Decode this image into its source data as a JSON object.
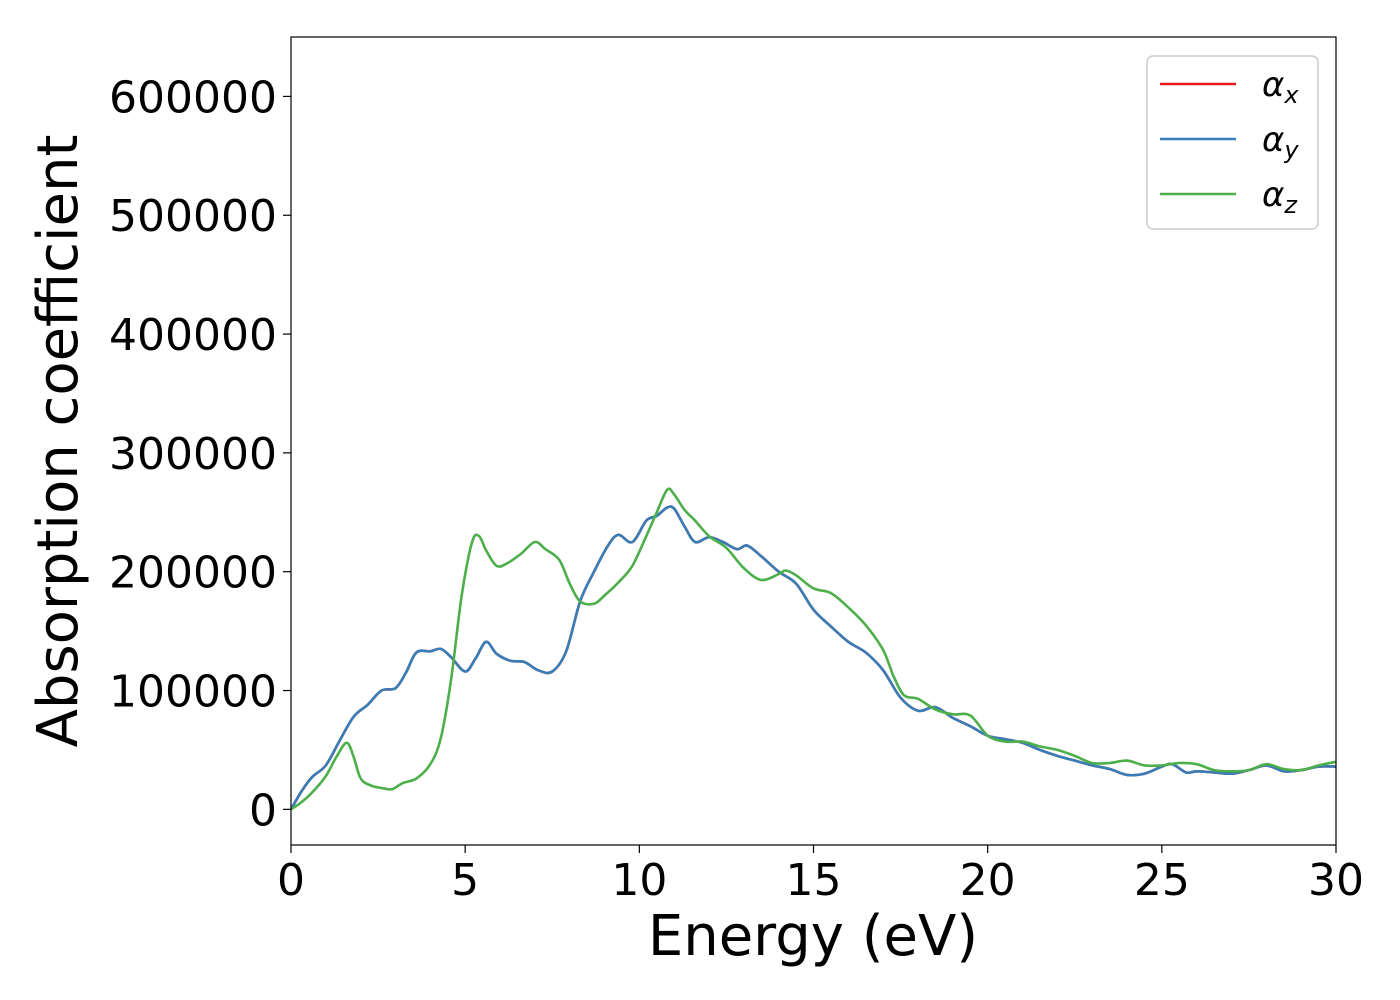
{
  "chart_data": {
    "type": "line",
    "xlabel": "Energy (eV)",
    "ylabel": "Absorption coefficient",
    "xlim": [
      0,
      30
    ],
    "ylim": [
      -30000,
      650000
    ],
    "xticks": [
      0,
      5,
      10,
      15,
      20,
      25,
      30
    ],
    "yticks": [
      0,
      100000,
      200000,
      300000,
      400000,
      500000,
      600000
    ],
    "grid": false,
    "legend_position": "top-right",
    "series": [
      {
        "name": "α",
        "subscript": "x",
        "color": "#e41a1c",
        "x": [
          0,
          0.3,
          0.6,
          1.0,
          1.4,
          1.8,
          2.2,
          2.6,
          3.0,
          3.3,
          3.6,
          4.0,
          4.3,
          4.6,
          5.0,
          5.3,
          5.6,
          5.9,
          6.3,
          6.7,
          7.1,
          7.5,
          7.9,
          8.3,
          8.7,
          9.1,
          9.4,
          9.8,
          10.2,
          10.5,
          10.8,
          11.0,
          11.3,
          11.6,
          12.0,
          12.4,
          12.8,
          13.1,
          13.5,
          14.0,
          14.5,
          15.0,
          15.5,
          16.0,
          16.5,
          17.0,
          17.5,
          18.0,
          18.5,
          19.0,
          19.5,
          20.0,
          20.5,
          21.0,
          21.5,
          22.0,
          22.5,
          23.0,
          23.5,
          24.0,
          24.5,
          25.0,
          25.3,
          25.7,
          26.0,
          26.5,
          27.0,
          27.5,
          28.0,
          28.5,
          29.0,
          29.5,
          30.0
        ],
        "y": [
          0,
          15000,
          27000,
          37000,
          58000,
          78000,
          88000,
          100000,
          102000,
          115000,
          132000,
          133000,
          135000,
          128000,
          116000,
          127000,
          141000,
          131000,
          125000,
          124000,
          117000,
          116000,
          133000,
          175000,
          200000,
          222000,
          231000,
          225000,
          243000,
          247000,
          254000,
          253000,
          238000,
          225000,
          229000,
          225000,
          219000,
          222000,
          213000,
          200000,
          190000,
          168000,
          154000,
          141000,
          132000,
          117000,
          94000,
          83000,
          86000,
          77000,
          70000,
          62000,
          59000,
          56000,
          50000,
          45000,
          41000,
          37000,
          34000,
          29000,
          30000,
          36000,
          38000,
          31000,
          32000,
          31000,
          30000,
          33000,
          37000,
          32000,
          33000,
          36000,
          36000
        ]
      },
      {
        "name": "α",
        "subscript": "y",
        "color": "#377eb8",
        "x": [
          0,
          0.3,
          0.6,
          1.0,
          1.4,
          1.8,
          2.2,
          2.6,
          3.0,
          3.3,
          3.6,
          4.0,
          4.3,
          4.6,
          5.0,
          5.3,
          5.6,
          5.9,
          6.3,
          6.7,
          7.1,
          7.5,
          7.9,
          8.3,
          8.7,
          9.1,
          9.4,
          9.8,
          10.2,
          10.5,
          10.8,
          11.0,
          11.3,
          11.6,
          12.0,
          12.4,
          12.8,
          13.1,
          13.5,
          14.0,
          14.5,
          15.0,
          15.5,
          16.0,
          16.5,
          17.0,
          17.5,
          18.0,
          18.5,
          19.0,
          19.5,
          20.0,
          20.5,
          21.0,
          21.5,
          22.0,
          22.5,
          23.0,
          23.5,
          24.0,
          24.5,
          25.0,
          25.3,
          25.7,
          26.0,
          26.5,
          27.0,
          27.5,
          28.0,
          28.5,
          29.0,
          29.5,
          30.0
        ],
        "y": [
          0,
          15000,
          27000,
          37000,
          58000,
          78000,
          88000,
          100000,
          102000,
          115000,
          132000,
          133000,
          135000,
          128000,
          116000,
          127000,
          141000,
          131000,
          125000,
          124000,
          117000,
          116000,
          133000,
          175000,
          200000,
          222000,
          231000,
          225000,
          243000,
          247000,
          254000,
          253000,
          238000,
          225000,
          229000,
          225000,
          219000,
          222000,
          213000,
          200000,
          190000,
          168000,
          154000,
          141000,
          132000,
          117000,
          94000,
          83000,
          86000,
          77000,
          70000,
          62000,
          59000,
          56000,
          50000,
          45000,
          41000,
          37000,
          34000,
          29000,
          30000,
          36000,
          38000,
          31000,
          32000,
          31000,
          30000,
          33000,
          37000,
          32000,
          33000,
          36000,
          36000
        ]
      },
      {
        "name": "α",
        "subscript": "z",
        "color": "#4daf4a",
        "x": [
          0,
          0.3,
          0.6,
          1.0,
          1.3,
          1.6,
          1.8,
          2.0,
          2.3,
          2.6,
          2.9,
          3.2,
          3.6,
          4.0,
          4.3,
          4.6,
          4.9,
          5.2,
          5.4,
          5.6,
          5.9,
          6.2,
          6.6,
          7.0,
          7.3,
          7.7,
          8.0,
          8.3,
          8.7,
          9.0,
          9.4,
          9.8,
          10.2,
          10.5,
          10.8,
          11.0,
          11.3,
          11.6,
          12.0,
          12.5,
          13.0,
          13.5,
          14.0,
          14.2,
          14.5,
          15.0,
          15.5,
          16.0,
          16.5,
          17.0,
          17.3,
          17.6,
          18.0,
          18.5,
          19.0,
          19.5,
          20.0,
          20.5,
          21.0,
          21.5,
          22.0,
          22.5,
          23.0,
          23.5,
          24.0,
          24.5,
          25.0,
          25.5,
          26.0,
          26.5,
          27.0,
          27.5,
          28.0,
          28.5,
          29.0,
          29.5,
          30.0
        ],
        "y": [
          0,
          6000,
          14000,
          28000,
          44000,
          56000,
          44000,
          26000,
          20000,
          18000,
          17000,
          22000,
          26000,
          38000,
          60000,
          110000,
          180000,
          225000,
          230000,
          218000,
          205000,
          207000,
          215000,
          225000,
          219000,
          210000,
          190000,
          175000,
          173000,
          180000,
          191000,
          205000,
          230000,
          250000,
          269000,
          265000,
          252000,
          243000,
          230000,
          220000,
          203000,
          193000,
          198000,
          201000,
          197000,
          186000,
          182000,
          170000,
          155000,
          134000,
          112000,
          96000,
          93000,
          84000,
          80000,
          79000,
          62000,
          57000,
          57000,
          53000,
          50000,
          45000,
          39000,
          39000,
          41000,
          37000,
          37000,
          39000,
          38000,
          33000,
          32000,
          33000,
          38000,
          34000,
          33000,
          37000,
          40000
        ]
      }
    ]
  }
}
